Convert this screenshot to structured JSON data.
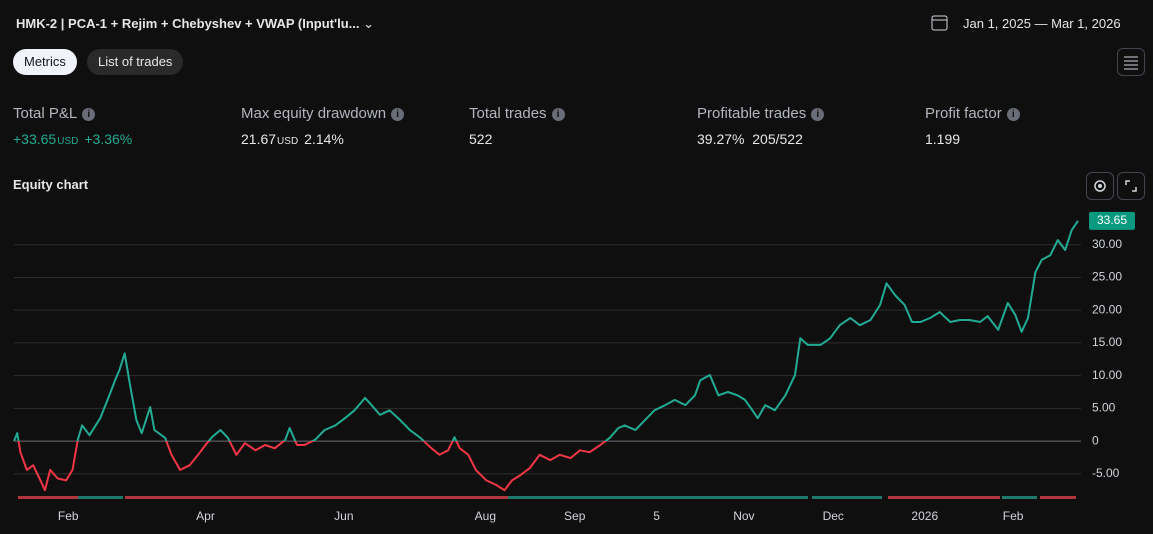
{
  "header": {
    "title": "HMK-2 | PCA-1 + Rejim + Chebyshev + VWAP (Input'lu...",
    "date_range": "Jan 1, 2025 — Mar 1, 2026"
  },
  "tabs": [
    "Metrics",
    "List of trades"
  ],
  "metrics": [
    {
      "label": "Total P&L",
      "value": "+33.65",
      "unit": "USD",
      "extra": "+3.36%"
    },
    {
      "label": "Max equity drawdown",
      "value": "21.67",
      "unit": "USD",
      "extra": "2.14%"
    },
    {
      "label": "Total trades",
      "value": "522"
    },
    {
      "label": "Profitable trades",
      "value": "39.27%",
      "extra": "205/522"
    },
    {
      "label": "Profit factor",
      "value": "1.199"
    }
  ],
  "chart_data": {
    "type": "line",
    "title": "Equity chart",
    "color": "#22ab94",
    "negative_color": "#f23645",
    "x": [
      0,
      0.3,
      0.6,
      1.2,
      1.8,
      2.4,
      2.9,
      3.4,
      4.1,
      4.9,
      5.5,
      6.0,
      6.4,
      7.1,
      8.1,
      8.8,
      9.5,
      9.9,
      10.4,
      10.9,
      11.5,
      12.0,
      12.8,
      13.2,
      14.2,
      14.8,
      15.6,
      16.5,
      17.3,
      18.0,
      18.6,
      19.4,
      20.1,
      20.9,
      21.7,
      22.7,
      23.6,
      24.5,
      25.5,
      25.9,
      26.6,
      27.3,
      28.3,
      29.2,
      30.2,
      31.1,
      32.0,
      33.0,
      33.6,
      34.4,
      35.3,
      36.3,
      37.2,
      38.2,
      39.1,
      40.0,
      40.8,
      41.4,
      41.9,
      42.7,
      43.4,
      44.4,
      45.3,
      46.1,
      46.8,
      47.6,
      48.5,
      49.4,
      50.4,
      51.3,
      52.3,
      53.2,
      54.1,
      55.1,
      56.0,
      56.8,
      57.4,
      58.4,
      59.3,
      60.2,
      61.2,
      62.1,
      63.1,
      64.0,
      64.5,
      65.4,
      66.2,
      67.1,
      68.0,
      68.7,
      69.4,
      69.9,
      70.6,
      71.5,
      72.5,
      73.4,
      73.9,
      74.6,
      75.8,
      76.7,
      77.6,
      78.6,
      79.5,
      80.5,
      81.4,
      82.0,
      82.8,
      83.7,
      84.4,
      85.2,
      86.1,
      87.0,
      88.0,
      88.9,
      89.8,
      90.8,
      91.5,
      92.5,
      93.4,
      94.1,
      94.7,
      95.3,
      96.0,
      96.6,
      97.4,
      98.1,
      98.8,
      99.4,
      100
    ],
    "values": [
      0,
      1.2,
      -1.7,
      -4.4,
      -3.7,
      -5.7,
      -7.5,
      -4.4,
      -5.7,
      -6.0,
      -4.4,
      0.2,
      2.4,
      0.9,
      3.5,
      6.3,
      9.3,
      10.8,
      13.4,
      8.6,
      3.2,
      1.2,
      5.2,
      1.7,
      0.5,
      -2.1,
      -4.4,
      -3.7,
      -2.1,
      -0.6,
      0.6,
      1.7,
      0.5,
      -2.1,
      -0.3,
      -1.4,
      -0.6,
      -1.1,
      0.2,
      2.0,
      -0.6,
      -0.6,
      0.2,
      1.7,
      2.4,
      3.5,
      4.7,
      6.6,
      5.5,
      4.0,
      4.7,
      3.2,
      1.7,
      0.5,
      -0.9,
      -2.1,
      -1.4,
      0.6,
      -1.1,
      -2.1,
      -4.4,
      -6.0,
      -6.7,
      -7.5,
      -6.0,
      -5.2,
      -4.1,
      -2.1,
      -2.9,
      -2.1,
      -2.6,
      -1.4,
      -1.7,
      -0.6,
      0.5,
      2.0,
      2.4,
      1.7,
      3.2,
      4.7,
      5.5,
      6.3,
      5.5,
      7.0,
      9.3,
      10.1,
      7.0,
      7.5,
      7.0,
      6.3,
      4.7,
      3.5,
      5.5,
      4.7,
      7.0,
      10.1,
      15.7,
      14.7,
      14.7,
      15.7,
      17.7,
      18.8,
      17.7,
      18.5,
      20.8,
      24.1,
      22.3,
      20.8,
      18.2,
      18.2,
      18.8,
      19.7,
      18.2,
      18.5,
      18.5,
      18.2,
      19.1,
      17.0,
      21.1,
      19.3,
      16.7,
      18.8,
      25.8,
      27.7,
      28.4,
      30.7,
      29.2,
      32.2,
      33.65
    ],
    "xlim": [
      0,
      100
    ],
    "xticks": [
      {
        "value": 5.1,
        "label": "Feb"
      },
      {
        "value": 18.0,
        "label": "Apr"
      },
      {
        "value": 31.0,
        "label": "Jun"
      },
      {
        "value": 44.3,
        "label": "Aug"
      },
      {
        "value": 52.7,
        "label": "Sep"
      },
      {
        "value": 60.4,
        "label": "5"
      },
      {
        "value": 68.6,
        "label": "Nov"
      },
      {
        "value": 77.0,
        "label": "Dec"
      },
      {
        "value": 85.6,
        "label": "2026"
      },
      {
        "value": 93.9,
        "label": "Feb"
      }
    ],
    "ylim": [
      -9,
      35
    ],
    "yticks": [
      {
        "value": -5,
        "label": "-5.00"
      },
      0,
      {
        "value": 5,
        "label": "5.00"
      },
      {
        "value": 10,
        "label": "10.00"
      },
      {
        "value": 15,
        "label": "15.00"
      },
      {
        "value": 20,
        "label": "20.00"
      },
      {
        "value": 25,
        "label": "25.00"
      },
      {
        "value": 30,
        "label": "30.00"
      }
    ],
    "grid": true
  }
}
